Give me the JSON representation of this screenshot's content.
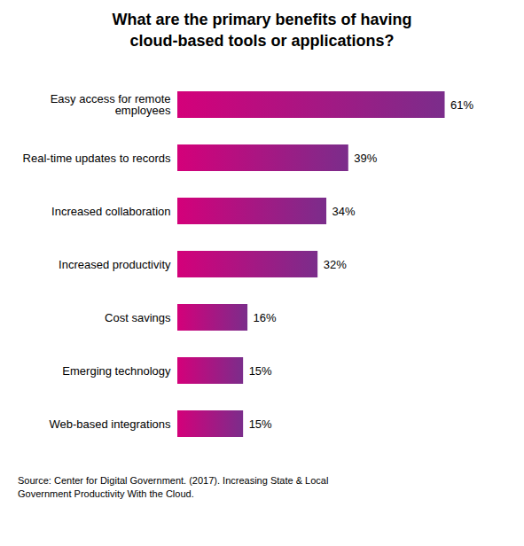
{
  "chart_data": {
    "type": "bar",
    "orientation": "horizontal",
    "title": "What are the primary benefits of having\ncloud-based tools or applications?",
    "categories": [
      "Web-based integrations",
      "Emerging technology",
      "Cost savings",
      "Increased productivity",
      "Increased collaboration",
      "Real-time updates to records",
      "Easy access for remote\nemployees"
    ],
    "values": [
      15,
      15,
      16,
      32,
      34,
      39,
      61
    ],
    "value_labels": [
      "15%",
      "15%",
      "16%",
      "32%",
      "34%",
      "39%",
      "61%"
    ],
    "data_labels": true,
    "color": [
      "#D4007A",
      "#7B2D8B"
    ],
    "xlim": [
      0,
      70
    ],
    "tick_labels": "y",
    "grid": false,
    "annotations": [
      "Source: Center for Digital Government. (2017). Increasing State & Local\nGovernment Productivity With the Cloud."
    ]
  }
}
